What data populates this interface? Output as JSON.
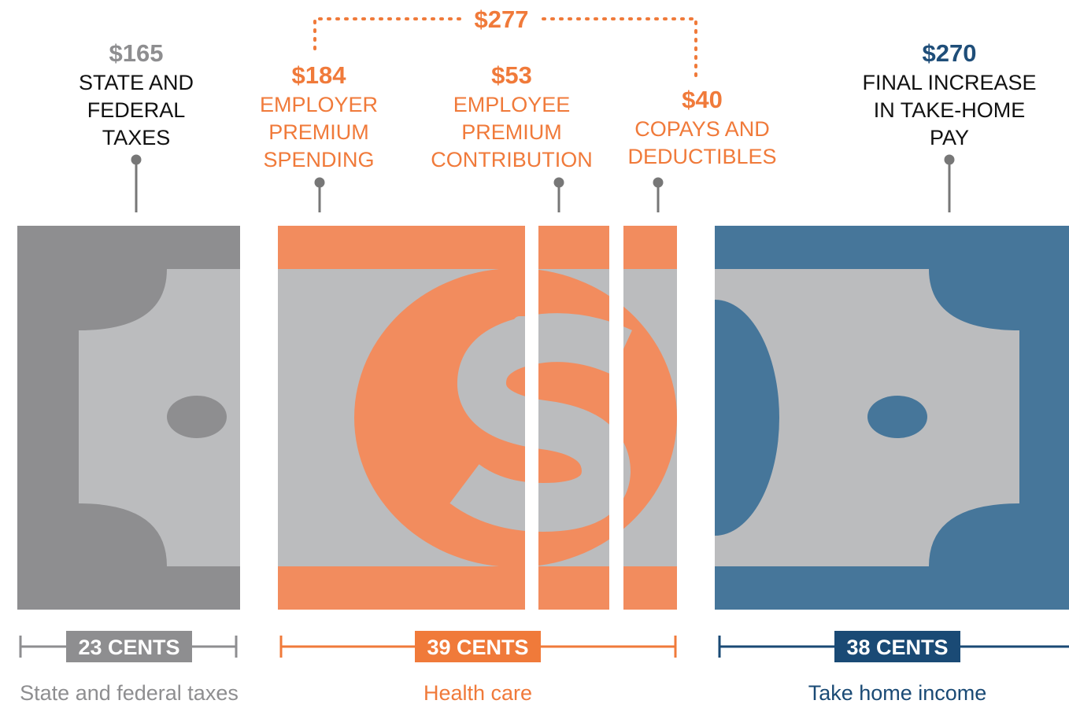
{
  "total": {
    "amount": "$277"
  },
  "segments": [
    {
      "amount": "$165",
      "label": [
        "STATE AND",
        "FEDERAL",
        "TAXES"
      ]
    },
    {
      "amount": "$184",
      "label": [
        "EMPLOYER",
        "PREMIUM",
        "SPENDING"
      ]
    },
    {
      "amount": "$53",
      "label": [
        "EMPLOYEE",
        "PREMIUM",
        "CONTRIBUTION"
      ]
    },
    {
      "amount": "$40",
      "label": [
        "COPAYS AND",
        "DEDUCTIBLES"
      ]
    },
    {
      "amount": "$270",
      "label": [
        "FINAL INCREASE",
        "IN TAKE-HOME",
        "PAY"
      ]
    }
  ],
  "groups": [
    {
      "badge": "23 CENTS",
      "caption": "State and federal taxes"
    },
    {
      "badge": "39 CENTS",
      "caption": "Health care"
    },
    {
      "badge": "38 CENTS",
      "caption": "Take home income"
    }
  ]
}
